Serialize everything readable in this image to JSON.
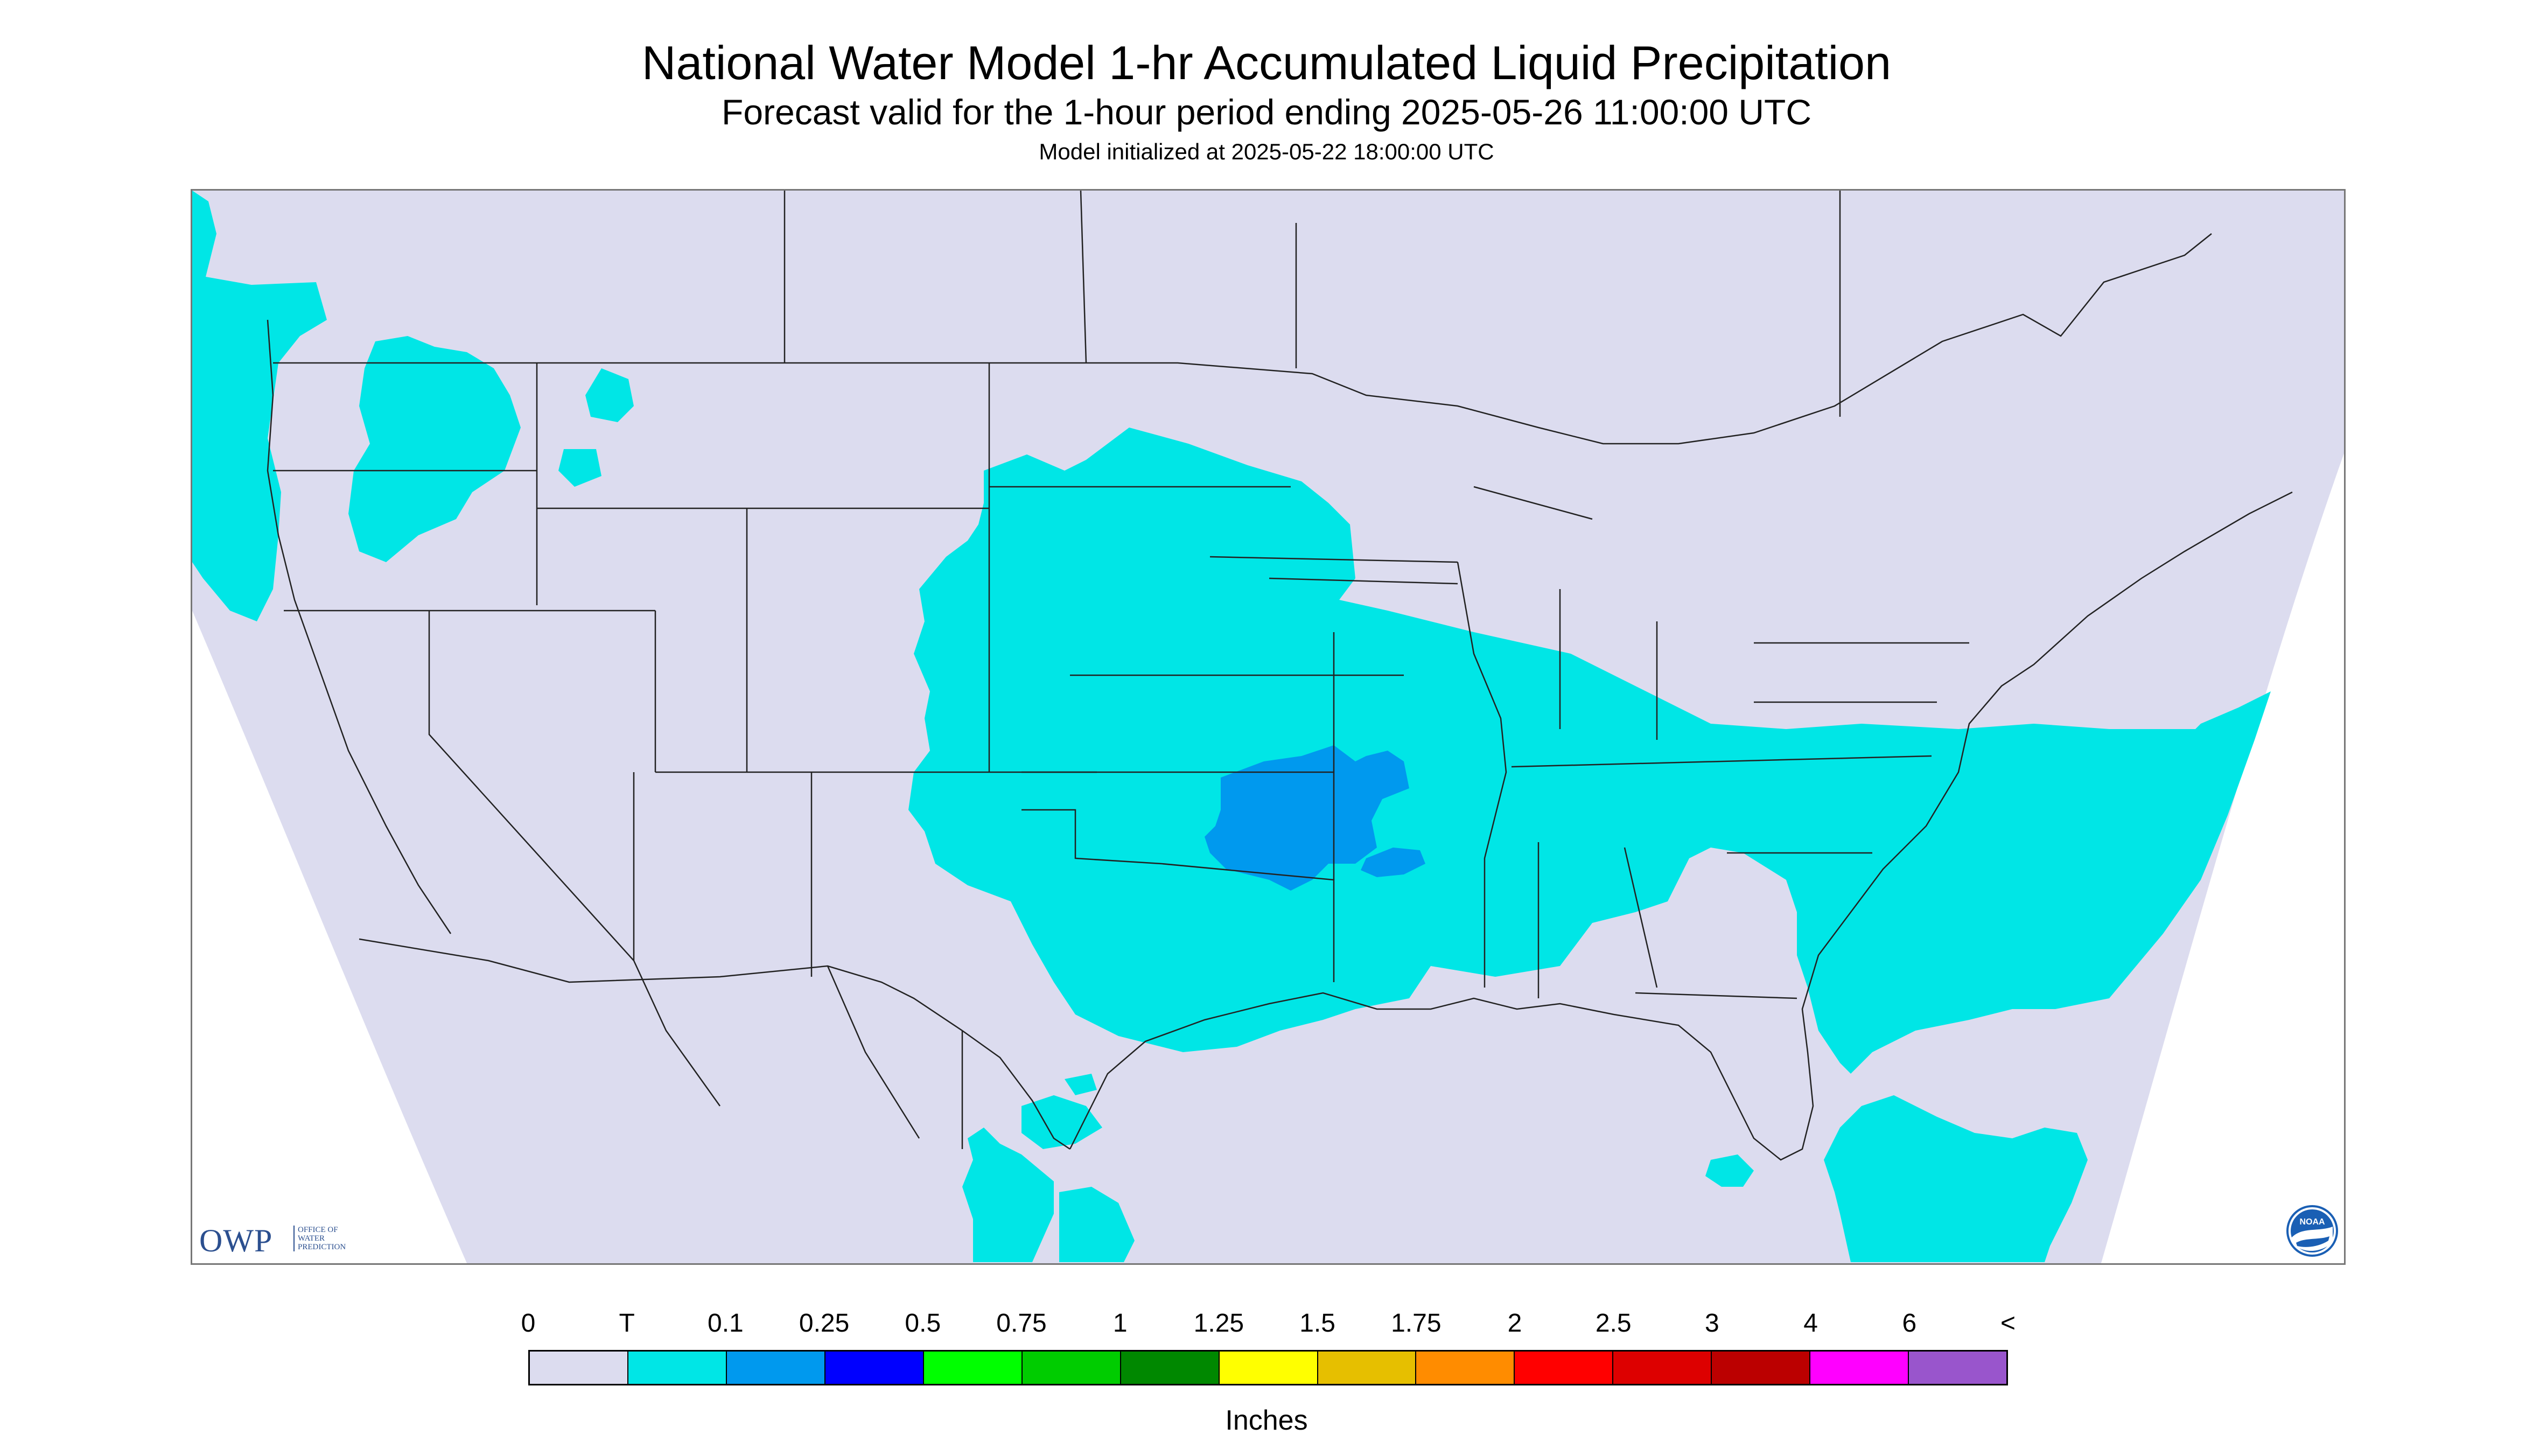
{
  "header": {
    "title": "National Water Model 1-hr Accumulated Liquid Precipitation",
    "subtitle": "Forecast valid for the 1-hour period ending 2025-05-26 11:00:00 UTC",
    "init_line": "Model initialized at 2025-05-22 18:00:00 UTC"
  },
  "map": {
    "background_color": "#dcdcef",
    "outside_color": "#ffffff",
    "boundary_color": "#222222",
    "precip_regions": [
      {
        "name": "pacific-northwest",
        "color": "#00e6e6",
        "value_bin": "T"
      },
      {
        "name": "central-plains-to-southeast",
        "color": "#00e6e6",
        "value_bin": "T"
      },
      {
        "name": "oklahoma-core",
        "color": "#0099ee",
        "value_bin": "0.1"
      },
      {
        "name": "mexico-south",
        "color": "#00e6e6",
        "value_bin": "T"
      },
      {
        "name": "atlantic-offshore",
        "color": "#00e6e6",
        "value_bin": "T"
      },
      {
        "name": "bahamas-region",
        "color": "#00e6e6",
        "value_bin": "T"
      }
    ]
  },
  "logos": {
    "owp_letters": "OWP",
    "owp_sub": "OFFICE OF\nWATER\nPREDICTION",
    "noaa": "NOAA",
    "owp_color": "#2b4f8f",
    "noaa_color": "#1a5fb4"
  },
  "legend": {
    "labels": [
      "0",
      "T",
      "0.1",
      "0.25",
      "0.5",
      "0.75",
      "1",
      "1.25",
      "1.5",
      "1.75",
      "2",
      "2.5",
      "3",
      "4",
      "6",
      "<"
    ],
    "colors": [
      "#dcdcef",
      "#00e6e6",
      "#0099ee",
      "#0000ff",
      "#00ff00",
      "#00cc00",
      "#008800",
      "#ffff00",
      "#e6bf00",
      "#ff8c00",
      "#ff0000",
      "#dd0000",
      "#bb0000",
      "#ff00ff",
      "#9955cc"
    ],
    "units": "Inches"
  }
}
